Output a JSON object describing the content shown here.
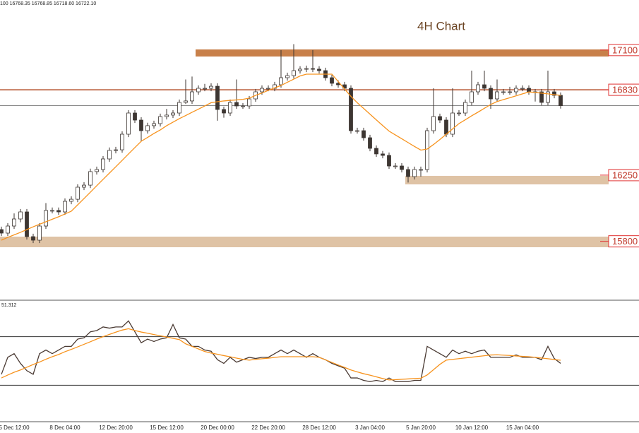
{
  "header": "100  16768.35 16768.85 16718.60 16722.10",
  "chart_data": [
    {
      "type": "candlestick",
      "title": "4H Chart",
      "categories": [
        null,
        null,
        "5 Dec 12:00",
        null,
        null,
        null,
        null,
        null,
        null,
        null,
        "8 Dec 04:00",
        null,
        null,
        null,
        null,
        null,
        null,
        null,
        "12 Dec 20:00",
        null,
        null,
        null,
        null,
        null,
        null,
        null,
        "15 Dec 12:00",
        null,
        null,
        null,
        null,
        null,
        null,
        null,
        "20 Dec 00:00",
        null,
        null,
        null,
        null,
        null,
        null,
        null,
        "22 Dec 20:00",
        null,
        null,
        null,
        null,
        null,
        null,
        null,
        "28 Dec 12:00",
        null,
        null,
        null,
        null,
        null,
        null,
        null,
        "3 Jan 04:00",
        null,
        null,
        null,
        null,
        null,
        null,
        null,
        "5 Jan 20:00",
        null,
        null,
        null,
        null,
        null,
        null,
        null,
        "10 Jan 12:00",
        null,
        null,
        null,
        null,
        null,
        null,
        null,
        "15 Jan 04:00",
        null,
        null,
        null,
        null,
        null,
        null
      ],
      "open": [
        15880,
        15856,
        15904,
        15952,
        16000,
        15832,
        15808,
        15904,
        16010,
        16010,
        16000,
        16072,
        16086,
        16168,
        16182,
        16274,
        16288,
        16360,
        16418,
        16422,
        16528,
        16672,
        16624,
        16552,
        16586,
        16600,
        16648,
        16658,
        16672,
        16744,
        16754,
        16816,
        16840,
        16840,
        16854,
        16696,
        16672,
        16744,
        16720,
        16720,
        16768,
        16816,
        16840,
        16840,
        16864,
        16912,
        16926,
        16960,
        16970,
        16974,
        16970,
        16960,
        16912,
        16874,
        16864,
        16840,
        16552,
        16552,
        16504,
        16432,
        16394,
        16384,
        16312,
        16312,
        16288,
        16240,
        16288,
        16288,
        16552,
        16648,
        16624,
        16528,
        16672,
        16672,
        16744,
        16816,
        16864,
        16840,
        16768,
        16816,
        16816,
        16816,
        16840,
        16840,
        16816,
        16816,
        16744,
        16816,
        16792
      ],
      "high": [
        15900,
        15924,
        15990,
        16020,
        16020,
        15852,
        15924,
        16060,
        16030,
        16030,
        16092,
        16106,
        16188,
        16202,
        16294,
        16308,
        16380,
        16438,
        16442,
        16548,
        16692,
        16692,
        16644,
        16606,
        16620,
        16668,
        16700,
        16692,
        16764,
        16900,
        16920,
        16860,
        16870,
        16874,
        16874,
        16716,
        16764,
        16900,
        16740,
        16788,
        16836,
        16860,
        16860,
        16884,
        17100,
        16946,
        17140,
        16990,
        16994,
        17100,
        16990,
        16980,
        16932,
        16894,
        16884,
        16860,
        16572,
        16572,
        16524,
        16452,
        16414,
        16404,
        16332,
        16332,
        16308,
        16308,
        16308,
        16572,
        16840,
        16668,
        16644,
        16840,
        16692,
        16764,
        16960,
        16884,
        16960,
        16860,
        16900,
        16836,
        16850,
        16860,
        16860,
        16860,
        16836,
        16836,
        16960,
        16836,
        16812
      ],
      "low": [
        15836,
        15836,
        15884,
        15930,
        15812,
        15788,
        15788,
        15884,
        15990,
        15980,
        15980,
        16052,
        16066,
        16148,
        16162,
        16254,
        16268,
        16340,
        16398,
        16402,
        16508,
        16604,
        16480,
        16532,
        16566,
        16580,
        16628,
        16638,
        16652,
        16734,
        16734,
        16796,
        16820,
        16820,
        16620,
        16640,
        16652,
        16700,
        16700,
        16700,
        16748,
        16796,
        16820,
        16820,
        16844,
        16892,
        16906,
        16940,
        16950,
        16950,
        16940,
        16892,
        16854,
        16844,
        16820,
        16532,
        16532,
        16484,
        16412,
        16374,
        16364,
        16292,
        16292,
        16268,
        16200,
        16220,
        16240,
        16268,
        16532,
        16604,
        16508,
        16508,
        16652,
        16652,
        16724,
        16796,
        16820,
        16700,
        16748,
        16796,
        16796,
        16796,
        16820,
        16796,
        16750,
        16724,
        16724,
        16772,
        16702
      ],
      "close": [
        15856,
        15904,
        15952,
        16000,
        15832,
        15808,
        15904,
        16010,
        16010,
        16000,
        16072,
        16086,
        16168,
        16182,
        16274,
        16288,
        16360,
        16418,
        16422,
        16528,
        16672,
        16624,
        16552,
        16586,
        16600,
        16648,
        16658,
        16672,
        16744,
        16754,
        16816,
        16840,
        16840,
        16854,
        16696,
        16672,
        16744,
        16720,
        16720,
        16768,
        16816,
        16840,
        16840,
        16864,
        16912,
        16926,
        16960,
        16970,
        16974,
        16970,
        16960,
        16912,
        16874,
        16864,
        16840,
        16552,
        16552,
        16504,
        16432,
        16394,
        16384,
        16312,
        16312,
        16288,
        16240,
        16288,
        16288,
        16552,
        16648,
        16624,
        16528,
        16672,
        16672,
        16744,
        16816,
        16864,
        16840,
        16768,
        16816,
        16816,
        16816,
        16840,
        16840,
        16816,
        16816,
        16744,
        16816,
        16792,
        16722
      ],
      "ylim": [
        15400,
        17440
      ],
      "up_color": "#ffffff",
      "down_color": "#3d3632",
      "outline_color": "#3d3632",
      "last_line_color": "#777777",
      "ma": {
        "color": "#f7931e",
        "values": [
          15808,
          15827,
          15844,
          15861,
          15880,
          15899,
          15916,
          15933,
          15950,
          15967,
          15986,
          16005,
          16048,
          16091,
          16134,
          16178,
          16221,
          16264,
          16307,
          16350,
          16394,
          16437,
          16480,
          16506,
          16533,
          16557,
          16586,
          16610,
          16634,
          16655,
          16677,
          16698,
          16720,
          16742,
          16749,
          16754,
          16758,
          16761,
          16765,
          16773,
          16792,
          16808,
          16826,
          16843,
          16859,
          16881,
          16902,
          16924,
          16936,
          16936,
          16936,
          16936,
          16936,
          16886,
          16835,
          16785,
          16742,
          16703,
          16664,
          16625,
          16587,
          16549,
          16523,
          16497,
          16471,
          16445,
          16420,
          16427,
          16458,
          16492,
          16528,
          16564,
          16600,
          16626,
          16653,
          16678,
          16704,
          16730,
          16750,
          16763,
          16776,
          16789,
          16802,
          16815,
          16812,
          16807,
          16802,
          16797,
          16792
        ]
      },
      "levels": [
        {
          "label": "17100",
          "value": 17100,
          "low": 17056,
          "high": 17104,
          "start": 31,
          "color": "#c8804a"
        },
        {
          "label": "16830",
          "value": 16830,
          "color": "#b5502a"
        },
        {
          "label": "16250",
          "value": 16250,
          "low": 16187,
          "high": 16245,
          "start": 64,
          "color": "#dfc3a5"
        },
        {
          "label": "15800",
          "value": 15800,
          "low": 15760,
          "high": 15832,
          "start": 0,
          "color": "#dfc3a5"
        }
      ],
      "label_color": "#e03030"
    },
    {
      "type": "line",
      "label": "51.312",
      "ylim": [
        0,
        100
      ],
      "hlines": [
        30,
        70
      ],
      "series": [
        {
          "color": "#4a3a33",
          "values": [
            39,
            53,
            56,
            48,
            42,
            39,
            56,
            59,
            56,
            59,
            62,
            62,
            68,
            69,
            74,
            75,
            78,
            77,
            78,
            78,
            83,
            74,
            65,
            68,
            66,
            68,
            69,
            80,
            69,
            68,
            62,
            62,
            59,
            58,
            51,
            48,
            53,
            49,
            51,
            53,
            52,
            53,
            53,
            56,
            59,
            56,
            59,
            56,
            53,
            56,
            53,
            51,
            48,
            46,
            44,
            36,
            36,
            34,
            33,
            34,
            33,
            36,
            33,
            33,
            33,
            34,
            34,
            62,
            59,
            56,
            53,
            59,
            56,
            58,
            56,
            58,
            59,
            53,
            53,
            53,
            53,
            55,
            53,
            53,
            53,
            51,
            62,
            52,
            48
          ]
        },
        {
          "color": "#f7931e",
          "values": [
            36,
            38.4,
            40.7,
            42.6,
            44.8,
            47.1,
            49.1,
            51.4,
            53.5,
            55.3,
            57.6,
            59.5,
            61.6,
            63.7,
            65.8,
            68,
            70,
            71.9,
            73.7,
            75.4,
            76.5,
            75.1,
            73.8,
            72.8,
            71.7,
            70.7,
            69.7,
            68.6,
            67.6,
            64.1,
            62,
            59.9,
            57.8,
            56.5,
            55.5,
            54.4,
            53.4,
            52.3,
            51.3,
            50.7,
            51.3,
            51.8,
            52.3,
            52.9,
            53.5,
            53.5,
            53.5,
            53.5,
            53.5,
            53.5,
            53,
            50.9,
            48.8,
            46.7,
            44.7,
            42.6,
            41,
            39.5,
            38.3,
            36.9,
            35.5,
            34.4,
            34.6,
            34.9,
            35.2,
            35.5,
            35.8,
            38.5,
            42.8,
            47.2,
            50.7,
            51.3,
            51.9,
            52.5,
            53.1,
            53.7,
            54.3,
            54.9,
            55.1,
            54.8,
            54.5,
            54.1,
            53.8,
            53.5,
            53,
            52.4,
            51.8,
            51.2,
            50.6
          ]
        }
      ]
    }
  ]
}
